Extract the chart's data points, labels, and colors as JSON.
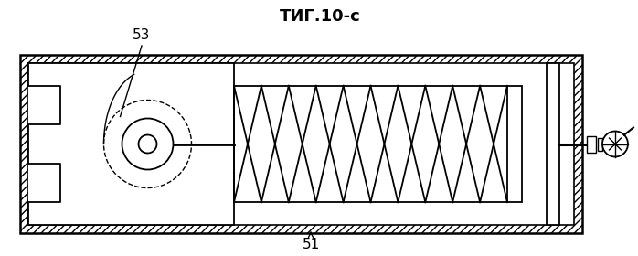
{
  "title": "ΤИГ.10-c",
  "label_51": "51",
  "label_53": "53",
  "bg_color": "#ffffff",
  "line_color": "#000000",
  "fig_width": 6.98,
  "fig_height": 2.8,
  "dpi": 100
}
